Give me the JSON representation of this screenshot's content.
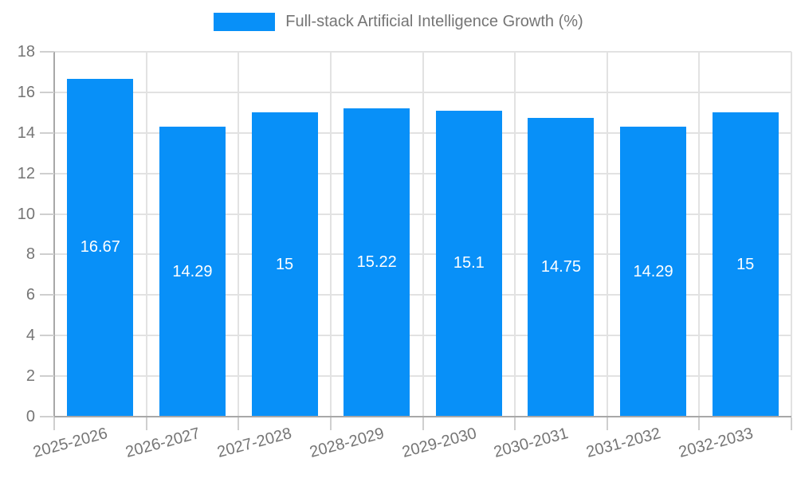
{
  "legend": {
    "label": "Full-stack Artificial Intelligence Growth (%)"
  },
  "chart_data": {
    "type": "bar",
    "title": "Full-stack Artificial Intelligence Growth (%)",
    "categories": [
      "2025-2026",
      "2026-2027",
      "2027-2028",
      "2028-2029",
      "2029-2030",
      "2030-2031",
      "2031-2032",
      "2032-2033"
    ],
    "values": [
      16.67,
      14.29,
      15,
      15.22,
      15.1,
      14.75,
      14.29,
      15
    ],
    "bar_labels": [
      "16.67",
      "14.29",
      "15",
      "15.22",
      "15.1",
      "14.75",
      "14.29",
      "15"
    ],
    "xlabel": "",
    "ylabel": "",
    "ylim": [
      0,
      18
    ],
    "y_ticks": [
      0,
      2,
      4,
      6,
      8,
      10,
      12,
      14,
      16,
      18
    ],
    "grid": true,
    "legend_position": "top",
    "colors": {
      "bar": "#0890f8",
      "grid": "#e2e2e2",
      "axis": "#a8a8a8",
      "tick_mark": "#cfcfcf",
      "axis_text": "#757575",
      "bar_value_text": "#ffffff"
    }
  }
}
